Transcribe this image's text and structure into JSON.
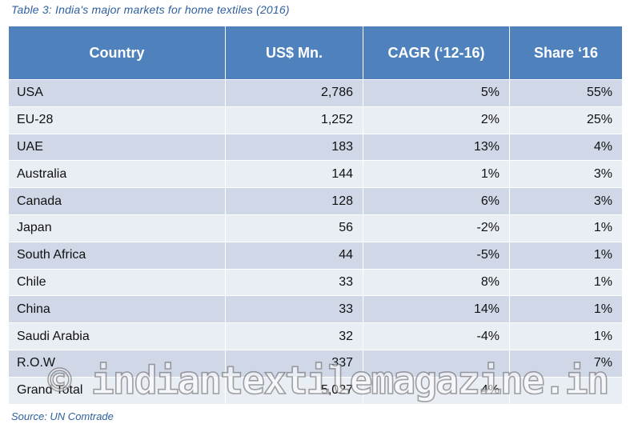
{
  "caption": "Table 3: India's major markets for home textiles (2016)",
  "headers": [
    "Country",
    "US$ Mn.",
    "CAGR (‘12-16)",
    "Share ‘16"
  ],
  "rows": [
    {
      "country": "USA",
      "usd": "2,786",
      "cagr": "5%",
      "share": "55%"
    },
    {
      "country": "EU-28",
      "usd": "1,252",
      "cagr": "2%",
      "share": "25%"
    },
    {
      "country": "UAE",
      "usd": "183",
      "cagr": "13%",
      "share": "4%"
    },
    {
      "country": "Australia",
      "usd": "144",
      "cagr": "1%",
      "share": "3%"
    },
    {
      "country": "Canada",
      "usd": "128",
      "cagr": "6%",
      "share": "3%"
    },
    {
      "country": "Japan",
      "usd": "56",
      "cagr": "-2%",
      "share": "1%"
    },
    {
      "country": "South Africa",
      "usd": "44",
      "cagr": "-5%",
      "share": "1%"
    },
    {
      "country": "Chile",
      "usd": "33",
      "cagr": "8%",
      "share": "1%"
    },
    {
      "country": "China",
      "usd": "33",
      "cagr": "14%",
      "share": "1%"
    },
    {
      "country": "Saudi Arabia",
      "usd": "32",
      "cagr": "-4%",
      "share": "1%"
    },
    {
      "country": "R.O.W",
      "usd": "337",
      "cagr": "",
      "share": "7%"
    },
    {
      "country": "Grand Total",
      "usd": "5,027",
      "cagr": "4%",
      "share": ""
    }
  ],
  "cagr_colors": {
    "positive_highlight": "#2e9e3a",
    "negative": "#d42a2a"
  },
  "highlight_rows": {
    "UAE": "positive",
    "China": "positive",
    "Japan": "negative",
    "South Africa": "negative",
    "Saudi Arabia": "negative"
  },
  "source": "Source: UN Comtrade",
  "watermark": "© indiantextilemagazine.in"
}
